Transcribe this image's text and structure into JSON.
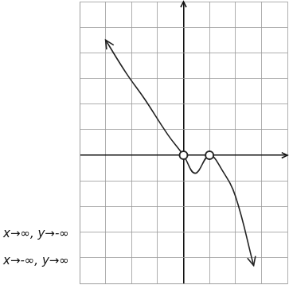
{
  "chart_data": {
    "type": "line",
    "x": [
      -3,
      -2.2,
      -1.5,
      -0.6,
      0,
      0.45,
      1,
      1.5,
      2,
      2.7
    ],
    "values": [
      4.5,
      3.2,
      2.2,
      0.8,
      0,
      -0.7,
      0,
      -0.6,
      -1.6,
      -4.3
    ],
    "xlim": [
      -4,
      4
    ],
    "ylim": [
      -5,
      6
    ],
    "xticks": [
      -4,
      -3,
      -2,
      -1,
      0,
      1,
      2,
      3,
      4
    ],
    "yticks": [
      -5,
      -4,
      -3,
      -2,
      -1,
      0,
      1,
      2,
      3,
      4,
      5,
      6
    ],
    "grid": true,
    "tick_labels": false,
    "color": "#222222",
    "marker": "circle",
    "line_style": "solid",
    "annotations": [
      "x→∞, y→-∞",
      "x→-∞, y→∞"
    ]
  }
}
